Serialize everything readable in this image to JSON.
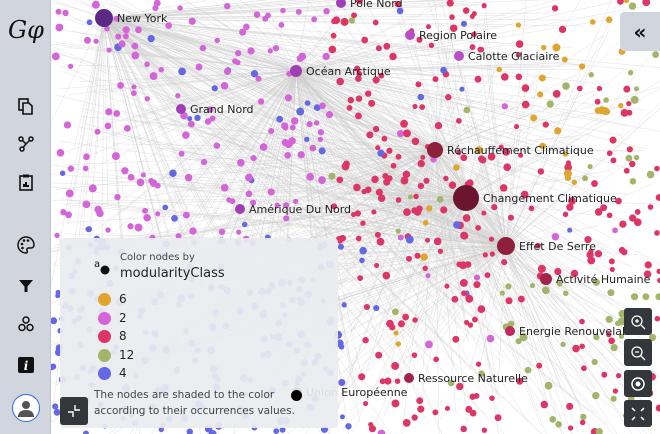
{
  "app": {
    "logo_text": "Gφ"
  },
  "sidebar": {
    "items": [
      {
        "name": "file",
        "icon": "file-copy-icon"
      },
      {
        "name": "graph",
        "icon": "graph-icon"
      },
      {
        "name": "report",
        "icon": "clipboard-chart-icon"
      },
      {
        "name": "appearance",
        "icon": "palette-icon"
      },
      {
        "name": "filters",
        "icon": "filter-icon"
      },
      {
        "name": "layout",
        "icon": "clusters-icon"
      },
      {
        "name": "info",
        "icon": "info-icon"
      },
      {
        "name": "user",
        "icon": "user-avatar-icon"
      }
    ]
  },
  "graph": {
    "node_labels": [
      "New York",
      "Pôle Nord",
      "Region Polaire",
      "Calotte Glaciaire",
      "Océan Arctique",
      "Grand Nord",
      "Réchauffement Climatique",
      "Changement Climatique",
      "Effet De Serre",
      "Activité Humaine",
      "Amérique Du Nord",
      "Energie Renouvelable",
      "Ressource Naturelle",
      "Union Européenne"
    ],
    "edge_color": "#cccccc"
  },
  "legend": {
    "title_small": "Color nodes by",
    "attribute": "modularityClass",
    "classes": [
      {
        "label": "6",
        "color": "#e0a52e"
      },
      {
        "label": "2",
        "color": "#d465d8"
      },
      {
        "label": "8",
        "color": "#dc3566"
      },
      {
        "label": "12",
        "color": "#a3b56a"
      },
      {
        "label": "4",
        "color": "#6468e2"
      }
    ],
    "note": "The nodes are shaded to the color according to their occurrences values."
  },
  "controls": {
    "collapse": "«",
    "zoom_in": "zoom-in-icon",
    "zoom_out": "zoom-out-icon",
    "center": "center-icon",
    "fullscreen": "fullscreen-icon"
  }
}
